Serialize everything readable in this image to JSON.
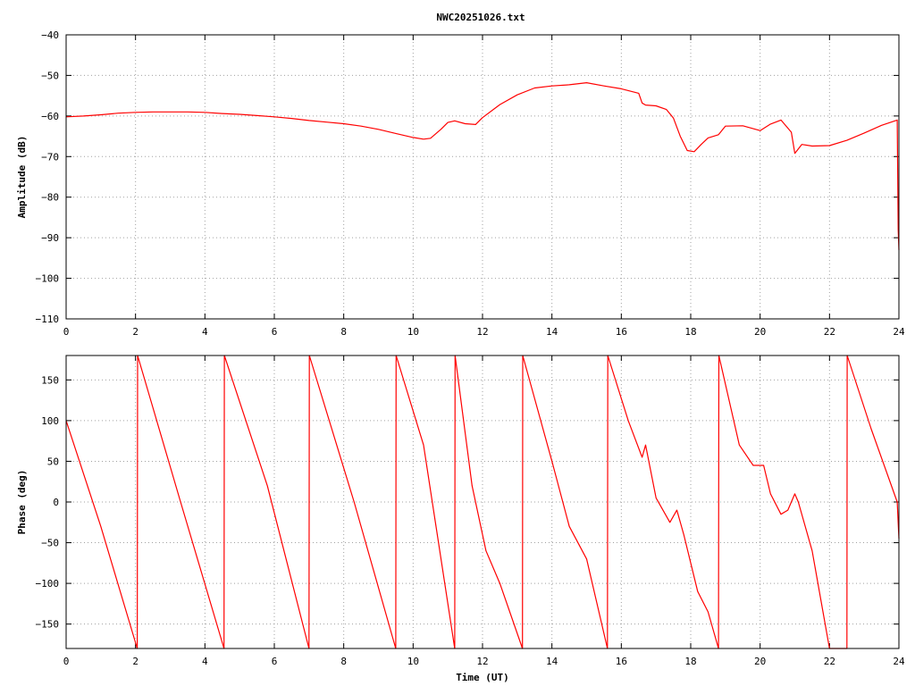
{
  "title": "NWC20251026.txt",
  "colors": {
    "series": "#ff0000",
    "axes": "#000000",
    "grid": "#a0a0a0",
    "background": "#ffffff"
  },
  "chart_data": [
    {
      "type": "line",
      "title": "NWC20251026.txt",
      "xlabel": "",
      "ylabel": "Amplitude (dB)",
      "xlim": [
        0,
        24
      ],
      "ylim": [
        -110,
        -40
      ],
      "xticks": [
        "0",
        "2",
        "4",
        "6",
        "8",
        "10",
        "12",
        "14",
        "16",
        "18",
        "20",
        "22",
        "24"
      ],
      "yticks": [
        "-40",
        "-50",
        "-60",
        "-70",
        "-80",
        "-90",
        "-100",
        "-110"
      ],
      "grid": true,
      "series": [
        {
          "x": [
            0,
            0.5,
            1,
            1.5,
            2,
            2.5,
            3,
            3.5,
            4,
            4.5,
            5,
            5.5,
            6,
            6.5,
            7,
            7.5,
            8,
            8.5,
            9,
            9.5,
            10,
            10.3,
            10.5,
            10.8,
            11,
            11.2,
            11.5,
            11.8,
            12,
            12.5,
            13,
            13.5,
            14,
            14.5,
            15,
            15.5,
            16,
            16.5,
            16.6,
            16.7,
            17,
            17.3,
            17.5,
            17.7,
            17.9,
            18.1,
            18.3,
            18.5,
            18.8,
            19,
            19.5,
            20,
            20.3,
            20.6,
            20.9,
            21,
            21.2,
            21.5,
            22,
            22.5,
            23,
            23.5,
            23.95,
            23.98,
            24
          ],
          "y": [
            -60.2,
            -60,
            -59.7,
            -59.3,
            -59.1,
            -59,
            -59,
            -59,
            -59.1,
            -59.4,
            -59.6,
            -59.9,
            -60.2,
            -60.6,
            -61.1,
            -61.5,
            -61.9,
            -62.5,
            -63.3,
            -64.3,
            -65.3,
            -65.7,
            -65.5,
            -63.3,
            -61.6,
            -61.2,
            -61.9,
            -62.1,
            -60.4,
            -57.2,
            -54.8,
            -53.1,
            -52.6,
            -52.3,
            -51.8,
            -52.6,
            -53.3,
            -54.4,
            -56.8,
            -57.3,
            -57.5,
            -58.4,
            -60.5,
            -65,
            -68.5,
            -68.8,
            -67,
            -65.4,
            -64.6,
            -62.5,
            -62.4,
            -63.6,
            -62,
            -61,
            -64,
            -69.2,
            -67,
            -67.4,
            -67.3,
            -66,
            -64.2,
            -62.3,
            -61,
            -88,
            -93
          ]
        }
      ]
    },
    {
      "type": "line",
      "title": "",
      "xlabel": "Time (UT)",
      "ylabel": "Phase (deg)",
      "xlim": [
        0,
        24
      ],
      "ylim": [
        -180,
        180
      ],
      "xticks": [
        "0",
        "2",
        "4",
        "6",
        "8",
        "10",
        "12",
        "14",
        "16",
        "18",
        "20",
        "22",
        "24"
      ],
      "yticks": [
        "150",
        "100",
        "50",
        "0",
        "-50",
        "-100",
        "-150"
      ],
      "grid": true,
      "series": [
        {
          "x": [
            0,
            1,
            2.05,
            2.06,
            3.3,
            4.55,
            4.56,
            5.8,
            7.0,
            7.01,
            8.3,
            9.5,
            9.51,
            10.3,
            11.2,
            11.21,
            11.7,
            12.1,
            12.5,
            13.15,
            13.16,
            14,
            14.5,
            15,
            15.6,
            15.61,
            16.2,
            16.6,
            16.7,
            17,
            17.4,
            17.6,
            17.8,
            18.2,
            18.5,
            18.8,
            18.81,
            19.4,
            19.8,
            20.1,
            20.3,
            20.6,
            20.8,
            21,
            21.1,
            21.5,
            22,
            22.5,
            22.51,
            23.2,
            23.95,
            24
          ],
          "y": [
            100,
            -30,
            -180,
            180,
            0,
            -180,
            180,
            20,
            -180,
            180,
            0,
            -180,
            180,
            70,
            -180,
            180,
            20,
            -60,
            -100,
            -180,
            180,
            50,
            -30,
            -70,
            -180,
            180,
            100,
            55,
            70,
            5,
            -25,
            -10,
            -40,
            -110,
            -135,
            -180,
            180,
            70,
            45,
            45,
            10,
            -15,
            -10,
            10,
            0,
            -60,
            -180,
            -180,
            180,
            90,
            0,
            -45
          ]
        }
      ]
    }
  ]
}
